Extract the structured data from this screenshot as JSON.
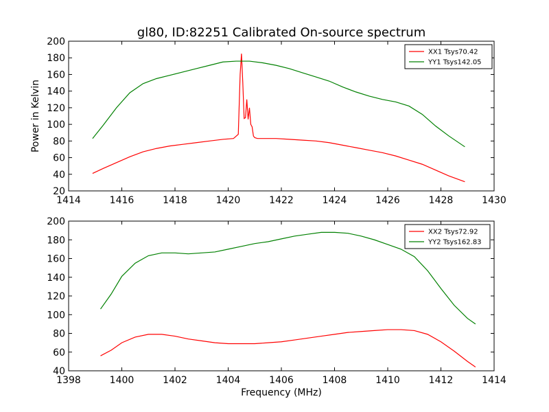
{
  "title": "gl80, ID:82251 Calibrated On-source spectrum",
  "chart_data": [
    {
      "type": "line",
      "title": "gl80, ID:82251 Calibrated On-source spectrum",
      "xlabel": "",
      "ylabel": "Power in Kelvin",
      "xlim": [
        1414,
        1430
      ],
      "ylim": [
        20,
        200
      ],
      "xticks": [
        1414,
        1416,
        1418,
        1420,
        1422,
        1424,
        1426,
        1428,
        1430
      ],
      "yticks": [
        20,
        40,
        60,
        80,
        100,
        120,
        140,
        160,
        180,
        200
      ],
      "grid": false,
      "legend": "top-right",
      "series": [
        {
          "name": "XX1 Tsys70.42",
          "color": "#ff0000",
          "x": [
            1414.9,
            1415.3,
            1415.8,
            1416.3,
            1416.8,
            1417.3,
            1417.8,
            1418.3,
            1418.8,
            1419.3,
            1419.8,
            1420.2,
            1420.38,
            1420.45,
            1420.5,
            1420.55,
            1420.6,
            1420.65,
            1420.7,
            1420.75,
            1420.8,
            1420.85,
            1420.9,
            1420.95,
            1421.0,
            1421.1,
            1421.3,
            1421.8,
            1422.3,
            1422.8,
            1423.3,
            1423.8,
            1424.3,
            1424.8,
            1425.3,
            1425.8,
            1426.3,
            1426.8,
            1427.3,
            1427.8,
            1428.3,
            1428.9
          ],
          "y": [
            41,
            47,
            54,
            61,
            67,
            71,
            74,
            76,
            78,
            80,
            82,
            83,
            88,
            160,
            185,
            150,
            107,
            108,
            130,
            106,
            120,
            100,
            97,
            86,
            84,
            83,
            83,
            83,
            82,
            81,
            80,
            78,
            75,
            72,
            69,
            66,
            62,
            57,
            52,
            45,
            38,
            31
          ]
        },
        {
          "name": "YY1 Tsys142.05",
          "color": "#008000",
          "x": [
            1414.9,
            1415.3,
            1415.8,
            1416.3,
            1416.8,
            1417.3,
            1417.8,
            1418.3,
            1418.8,
            1419.3,
            1419.8,
            1420.3,
            1420.8,
            1421.3,
            1421.8,
            1422.3,
            1422.8,
            1423.3,
            1423.8,
            1424.3,
            1424.8,
            1425.3,
            1425.8,
            1426.3,
            1426.8,
            1427.3,
            1427.8,
            1428.3,
            1428.9
          ],
          "y": [
            83,
            99,
            120,
            138,
            149,
            155,
            159,
            163,
            167,
            171,
            175,
            176,
            176,
            174,
            171,
            167,
            162,
            157,
            152,
            145,
            139,
            134,
            130,
            127,
            122,
            112,
            98,
            86,
            73
          ]
        }
      ]
    },
    {
      "type": "line",
      "title": "",
      "xlabel": "Frequency (MHz)",
      "ylabel": "",
      "xlim": [
        1398,
        1414
      ],
      "ylim": [
        40,
        200
      ],
      "xticks": [
        1398,
        1400,
        1402,
        1404,
        1406,
        1408,
        1410,
        1412,
        1414
      ],
      "yticks": [
        40,
        60,
        80,
        100,
        120,
        140,
        160,
        180,
        200
      ],
      "grid": false,
      "legend": "top-right",
      "series": [
        {
          "name": "XX2 Tsys72.92",
          "color": "#ff0000",
          "x": [
            1399.2,
            1399.6,
            1400.0,
            1400.5,
            1401.0,
            1401.5,
            1402.0,
            1402.5,
            1403.0,
            1403.5,
            1404.0,
            1404.5,
            1405.0,
            1405.5,
            1406.0,
            1406.5,
            1407.0,
            1407.5,
            1408.0,
            1408.5,
            1409.0,
            1409.5,
            1410.0,
            1410.5,
            1411.0,
            1411.5,
            1412.0,
            1412.5,
            1413.0,
            1413.3
          ],
          "y": [
            56,
            62,
            70,
            76,
            79,
            79,
            77,
            74,
            72,
            70,
            69,
            69,
            69,
            70,
            71,
            73,
            75,
            77,
            79,
            81,
            82,
            83,
            84,
            84,
            83,
            79,
            71,
            61,
            50,
            44
          ]
        },
        {
          "name": "YY2 Tsys162.83",
          "color": "#008000",
          "x": [
            1399.2,
            1399.6,
            1400.0,
            1400.5,
            1401.0,
            1401.5,
            1402.0,
            1402.5,
            1403.0,
            1403.5,
            1404.0,
            1404.5,
            1405.0,
            1405.5,
            1406.0,
            1406.5,
            1407.0,
            1407.5,
            1408.0,
            1408.5,
            1409.0,
            1409.5,
            1410.0,
            1410.5,
            1411.0,
            1411.5,
            1412.0,
            1412.5,
            1413.0,
            1413.3
          ],
          "y": [
            106,
            122,
            141,
            155,
            163,
            166,
            166,
            165,
            166,
            167,
            170,
            173,
            176,
            178,
            181,
            184,
            186,
            188,
            188,
            187,
            184,
            180,
            175,
            170,
            162,
            147,
            128,
            110,
            96,
            90
          ]
        }
      ]
    }
  ]
}
